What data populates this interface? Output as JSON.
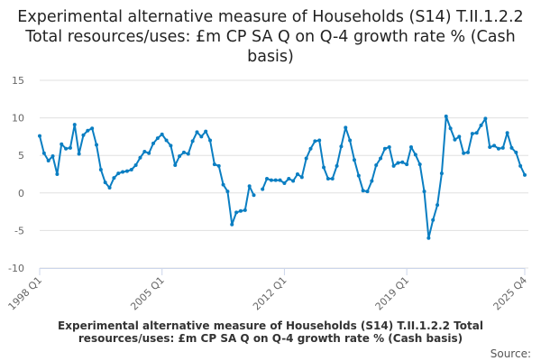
{
  "chart_data": {
    "type": "line",
    "title": "Experimental alternative measure of Households (S14) T.II.1.2.2 Total resources/uses: £m CP SA Q on Q-4 growth rate % (Cash basis)",
    "x_start": "1998 Q1",
    "x_end": "2025 Q4",
    "xtick_labels": [
      "1998 Q1",
      "2005 Q1",
      "2012 Q1",
      "2019 Q1",
      "2025 Q4"
    ],
    "ylim": [
      -10,
      15
    ],
    "yticks": [
      15,
      10,
      5,
      0,
      -5,
      -10
    ],
    "grid": true,
    "color": "#0a7ec2",
    "series": [
      {
        "name": "Experimental alternative measure of Households (S14) T.II.1.2.2 Total resources/uses: £m CP SA Q on Q-4 growth rate % (Cash basis)",
        "values": [
          7.6,
          5.3,
          4.3,
          4.9,
          2.5,
          6.5,
          5.9,
          6.0,
          9.1,
          5.2,
          7.7,
          8.3,
          8.6,
          6.4,
          3.1,
          1.4,
          0.7,
          2.0,
          2.6,
          2.8,
          2.9,
          3.1,
          3.7,
          4.7,
          5.5,
          5.3,
          6.6,
          7.3,
          7.8,
          7.0,
          6.3,
          3.7,
          4.9,
          5.4,
          5.2,
          6.9,
          8.1,
          7.5,
          8.2,
          7.0,
          3.8,
          3.6,
          1.1,
          0.2,
          -4.2,
          -2.6,
          -2.4,
          -2.3,
          0.9,
          -0.3,
          null,
          0.5,
          1.9,
          1.7,
          1.7,
          1.7,
          1.3,
          1.9,
          1.6,
          2.5,
          2.1,
          4.6,
          5.9,
          6.9,
          7.0,
          3.4,
          1.9,
          1.9,
          3.6,
          6.2,
          8.7,
          7.0,
          4.4,
          2.3,
          0.3,
          0.2,
          1.6,
          3.7,
          4.6,
          5.9,
          6.1,
          3.6,
          4.0,
          4.1,
          3.8,
          6.1,
          5.1,
          3.8,
          0.2,
          -6.0,
          -3.6,
          -1.6,
          2.6,
          10.2,
          8.6,
          7.1,
          7.5,
          5.3,
          5.4,
          7.9,
          8.0,
          9.0,
          9.9,
          6.1,
          6.3,
          5.9,
          6.0,
          8.0,
          6.0,
          5.4,
          3.6,
          2.4
        ]
      }
    ]
  },
  "legend_text": "Experimental alternative measure of Households (S14) T.II.1.2.2 Total resources/uses: £m CP SA Q on Q-4 growth rate % (Cash basis)",
  "source_label": "Source:"
}
